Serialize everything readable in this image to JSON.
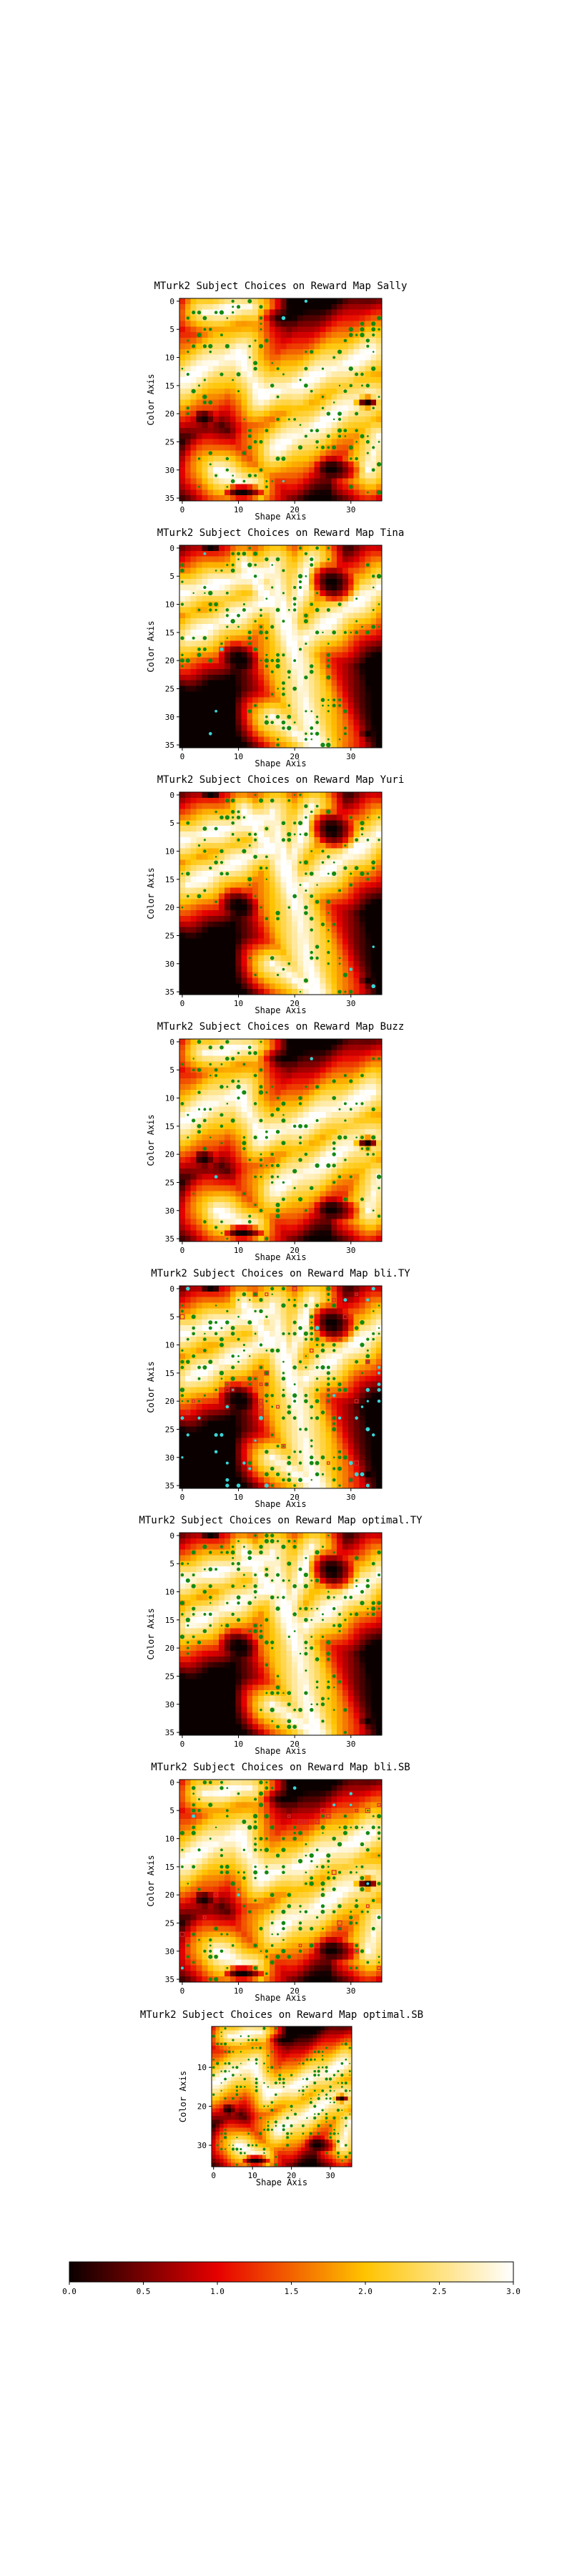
{
  "colormap": {
    "name": "hot",
    "stops": [
      {
        "v": 0.0,
        "color": "#0b0000"
      },
      {
        "v": 1.0,
        "color": "#e60000"
      },
      {
        "v": 2.0,
        "color": "#ffc400"
      },
      {
        "v": 3.0,
        "color": "#ffffff"
      }
    ]
  },
  "marker_colors": {
    "green": "#138a13",
    "cyan": "#38d6d6",
    "red": "#d82a2a"
  },
  "chart_data": [
    {
      "type": "heatmap",
      "title": "MTurk2 Subject Choices on Reward Map Sally",
      "xlabel": "Shape Axis",
      "ylabel": "Color Axis",
      "grid_size": 36,
      "xlim": [
        0,
        35
      ],
      "ylim": [
        35,
        0
      ],
      "x_ticks": [
        0,
        10,
        20,
        30
      ],
      "y_ticks": [
        0,
        5,
        10,
        15,
        20,
        25,
        30,
        35
      ],
      "map": "A",
      "markers": [
        {
          "color": "green",
          "n": 170
        },
        {
          "color": "cyan",
          "n": 3
        }
      ]
    },
    {
      "type": "heatmap",
      "title": "MTurk2 Subject Choices on Reward Map Tina",
      "xlabel": "Shape Axis",
      "ylabel": "Color Axis",
      "grid_size": 36,
      "xlim": [
        0,
        35
      ],
      "ylim": [
        35,
        0
      ],
      "x_ticks": [
        0,
        10,
        20,
        30
      ],
      "y_ticks": [
        0,
        5,
        10,
        15,
        20,
        25,
        30,
        35
      ],
      "map": "B",
      "markers": [
        {
          "color": "green",
          "n": 200
        },
        {
          "color": "cyan",
          "n": 4
        }
      ]
    },
    {
      "type": "heatmap",
      "title": "MTurk2 Subject Choices on Reward Map Yuri",
      "xlabel": "Shape Axis",
      "ylabel": "Color Axis",
      "grid_size": 36,
      "xlim": [
        0,
        35
      ],
      "ylim": [
        35,
        0
      ],
      "x_ticks": [
        0,
        10,
        20,
        30
      ],
      "y_ticks": [
        0,
        5,
        10,
        15,
        20,
        25,
        30,
        35
      ],
      "map": "B",
      "markers": [
        {
          "color": "green",
          "n": 150
        },
        {
          "color": "cyan",
          "n": 3
        }
      ]
    },
    {
      "type": "heatmap",
      "title": "MTurk2 Subject Choices on Reward Map Buzz",
      "xlabel": "Shape Axis",
      "ylabel": "Color Axis",
      "grid_size": 36,
      "xlim": [
        0,
        35
      ],
      "ylim": [
        35,
        0
      ],
      "x_ticks": [
        0,
        10,
        20,
        30
      ],
      "y_ticks": [
        0,
        5,
        10,
        15,
        20,
        25,
        30,
        35
      ],
      "map": "A",
      "markers": [
        {
          "color": "green",
          "n": 170
        },
        {
          "color": "cyan",
          "n": 2
        }
      ]
    },
    {
      "type": "heatmap",
      "title": "MTurk2 Subject Choices on Reward Map bli.TY",
      "xlabel": "Shape Axis",
      "ylabel": "Color Axis",
      "grid_size": 36,
      "xlim": [
        0,
        35
      ],
      "ylim": [
        35,
        0
      ],
      "x_ticks": [
        0,
        10,
        20,
        30
      ],
      "y_ticks": [
        0,
        5,
        10,
        15,
        20,
        25,
        30,
        35
      ],
      "map": "B",
      "markers": [
        {
          "color": "green",
          "n": 230
        },
        {
          "color": "cyan",
          "n": 40
        },
        {
          "color": "red",
          "n": 30
        }
      ]
    },
    {
      "type": "heatmap",
      "title": "MTurk2 Subject Choices on Reward Map optimal.TY",
      "xlabel": "Shape Axis",
      "ylabel": "Color Axis",
      "grid_size": 36,
      "xlim": [
        0,
        35
      ],
      "ylim": [
        35,
        0
      ],
      "x_ticks": [
        0,
        10,
        20,
        30
      ],
      "y_ticks": [
        0,
        5,
        10,
        15,
        20,
        25,
        30,
        35
      ],
      "map": "B",
      "markers": [
        {
          "color": "green",
          "n": 220
        }
      ]
    },
    {
      "type": "heatmap",
      "title": "MTurk2 Subject Choices on Reward Map bli.SB",
      "xlabel": "Shape Axis",
      "ylabel": "Color Axis",
      "grid_size": 36,
      "xlim": [
        0,
        35
      ],
      "ylim": [
        35,
        0
      ],
      "x_ticks": [
        0,
        10,
        20,
        30
      ],
      "y_ticks": [
        0,
        5,
        10,
        15,
        20,
        25,
        30,
        35
      ],
      "map": "A",
      "markers": [
        {
          "color": "green",
          "n": 230
        },
        {
          "color": "cyan",
          "n": 8
        },
        {
          "color": "red",
          "n": 20
        }
      ]
    },
    {
      "type": "heatmap",
      "title": "MTurk2 Subject Choices on Reward Map optimal.SB",
      "xlabel": "Shape Axis",
      "ylabel": "Color Axis",
      "grid_size": 36,
      "xlim": [
        0,
        35
      ],
      "ylim": [
        35,
        0
      ],
      "x_ticks": [
        0,
        10,
        20,
        30
      ],
      "y_ticks": [
        10,
        20,
        30
      ],
      "map": "A",
      "markers": [
        {
          "color": "green",
          "n": 260
        }
      ]
    }
  ],
  "colorbar": {
    "ticks": [
      "0.0",
      "0.5",
      "1.0",
      "1.5",
      "2.0",
      "2.5",
      "3.0"
    ],
    "range": [
      0,
      3
    ]
  }
}
